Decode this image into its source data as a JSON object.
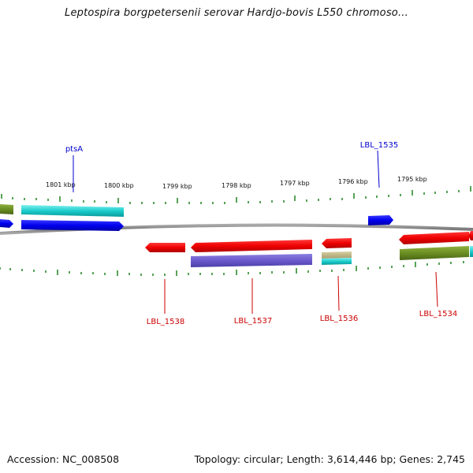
{
  "title": "Leptospira borgpetersenii serovar Hardjo-bovis L550 chromoso...",
  "footer": {
    "accession": "Accession: NC_008508",
    "summary": "Topology: circular; Length: 3,614,446 bp; Genes: 2,745"
  },
  "ticks": [
    "1801 kbp",
    "1800 kbp",
    "1799 kbp",
    "1798 kbp",
    "1797 kbp",
    "1796 kbp",
    "1795 kbp"
  ],
  "gene_labels": [
    {
      "text": "ptsA",
      "strand": "forward",
      "color": "#0000cc"
    },
    {
      "text": "LBL_1535",
      "strand": "forward",
      "color": "#0000cc"
    },
    {
      "text": "LBL_1538",
      "strand": "reverse",
      "color": "#cc0000"
    },
    {
      "text": "LBL_1537",
      "strand": "reverse",
      "color": "#cc0000"
    },
    {
      "text": "LBL_1536",
      "strand": "reverse",
      "color": "#cc0000"
    },
    {
      "text": "LBL_1534",
      "strand": "reverse",
      "color": "#cc0000"
    }
  ],
  "colors": {
    "forward_cds": "#0000ee",
    "reverse_cds": "#ee0000",
    "cyan_feature": "#00cccc",
    "olive_feature": "#6b8e23",
    "purple_feature": "#6a5acd",
    "tick": "#2e8b2e",
    "backbone": "#888888"
  }
}
